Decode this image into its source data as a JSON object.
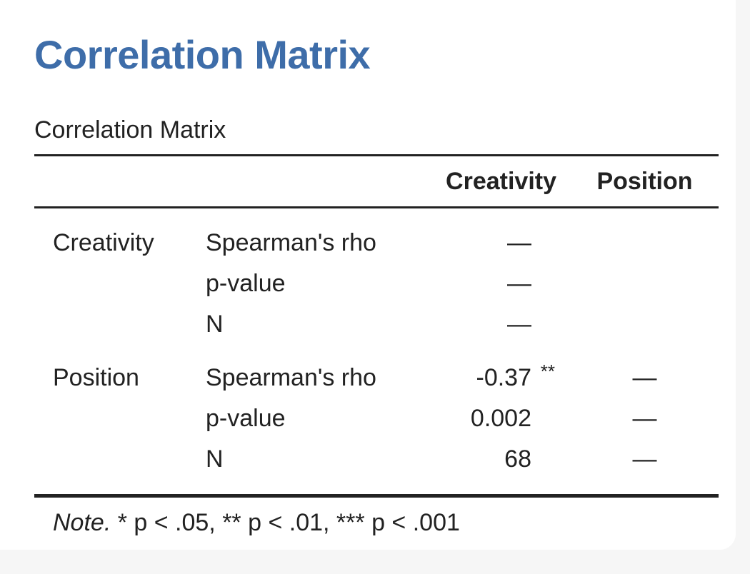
{
  "main_title": "Correlation Matrix",
  "table_caption": "Correlation Matrix",
  "columns": [
    "",
    "",
    "Creativity",
    "Position"
  ],
  "rows": [
    {
      "variable": "Creativity",
      "statistic": "Spearman's rho",
      "creativity": "—",
      "creativity_sig": "",
      "position": ""
    },
    {
      "variable": "",
      "statistic": "p-value",
      "creativity": "—",
      "creativity_sig": "",
      "position": ""
    },
    {
      "variable": "",
      "statistic": "N",
      "creativity": "—",
      "creativity_sig": "",
      "position": ""
    },
    {
      "variable": "Position",
      "statistic": "Spearman's rho",
      "creativity": "-0.37",
      "creativity_sig": "**",
      "position": "—"
    },
    {
      "variable": "",
      "statistic": "p-value",
      "creativity": "0.002",
      "creativity_sig": "",
      "position": "—"
    },
    {
      "variable": "",
      "statistic": "N",
      "creativity": "68",
      "creativity_sig": "",
      "position": "—"
    }
  ],
  "note": {
    "label": "Note.",
    "text": " * p < .05, ** p < .01, *** p < .001"
  },
  "colors": {
    "title": "#3e6da9",
    "text": "#222222",
    "background": "#ffffff"
  }
}
